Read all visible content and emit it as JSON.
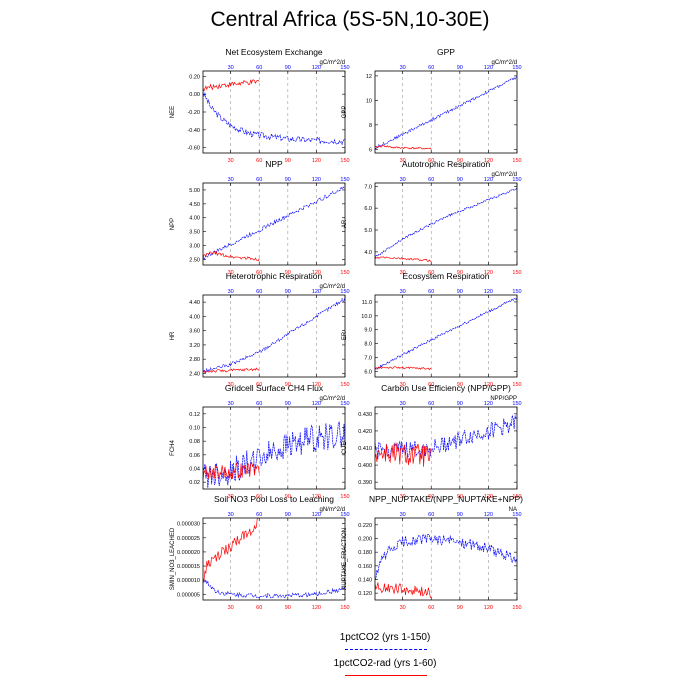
{
  "figure": {
    "title": "Central Africa (5S-5N,10-30E)",
    "colors": {
      "exp1": "#0000ff",
      "exp2": "#ff0000",
      "grid": "#999999"
    },
    "legend": [
      {
        "label": "1pctCO2 (yrs 1-150)",
        "color": "#0000ff",
        "style": "dashed"
      },
      {
        "label": "1pctCO2-rad (yrs 1-60)",
        "color": "#ff0000",
        "style": "solid"
      }
    ]
  },
  "chart_data": [
    {
      "type": "line",
      "title": "Net Ecosystem Exchange",
      "ylabel": "NEE",
      "units": "gC/m^2/d",
      "x": [
        1,
        150
      ],
      "top_ticks": [
        30,
        60,
        90,
        120,
        150
      ],
      "bottom_ticks": [
        30,
        60,
        90,
        120,
        150
      ],
      "yticks": [
        "0.20",
        "0.00",
        "-0.20",
        "-0.40",
        "-0.60"
      ],
      "ylim": [
        -0.66,
        0.26
      ],
      "series": [
        {
          "color": "#0000ff",
          "x": [
            1,
            10,
            20,
            30,
            40,
            50,
            60,
            75,
            90,
            105,
            120,
            135,
            150
          ],
          "y": [
            0.02,
            -0.16,
            -0.27,
            -0.35,
            -0.4,
            -0.44,
            -0.46,
            -0.48,
            -0.5,
            -0.51,
            -0.52,
            -0.52,
            -0.53
          ],
          "noise": 0.035
        },
        {
          "color": "#ff0000",
          "x": [
            1,
            10,
            20,
            30,
            40,
            50,
            60
          ],
          "y": [
            0.06,
            0.08,
            0.1,
            0.11,
            0.12,
            0.13,
            0.14
          ],
          "noise": 0.03
        }
      ]
    },
    {
      "type": "line",
      "title": "GPP",
      "ylabel": "GPP",
      "units": "gC/m^2/d",
      "x": [
        1,
        150
      ],
      "top_ticks": [
        30,
        60,
        90,
        120,
        150
      ],
      "bottom_ticks": [
        30,
        60,
        90,
        120,
        150
      ],
      "yticks": [
        "12",
        "10",
        "8",
        "6"
      ],
      "ylim": [
        5.7,
        12.4
      ],
      "series": [
        {
          "color": "#0000ff",
          "x": [
            1,
            150
          ],
          "y": [
            6.1,
            11.9
          ],
          "noise": 0.12
        },
        {
          "color": "#ff0000",
          "x": [
            1,
            10,
            20,
            60
          ],
          "y": [
            6.15,
            6.3,
            6.15,
            6.05
          ],
          "noise": 0.08
        }
      ]
    },
    {
      "type": "line",
      "title": "NPP",
      "ylabel": "NPP",
      "units": "",
      "x": [
        1,
        150
      ],
      "top_ticks": [
        30,
        60,
        90,
        120,
        150
      ],
      "bottom_ticks": [
        30,
        60,
        90,
        120,
        150
      ],
      "yticks": [
        "5.00",
        "4.50",
        "4.00",
        "3.50",
        "3.00",
        "2.50"
      ],
      "ylim": [
        2.3,
        5.25
      ],
      "series": [
        {
          "color": "#0000ff",
          "x": [
            1,
            150
          ],
          "y": [
            2.55,
            5.1
          ],
          "noise": 0.07
        },
        {
          "color": "#ff0000",
          "x": [
            1,
            10,
            30,
            60
          ],
          "y": [
            2.6,
            2.75,
            2.6,
            2.5
          ],
          "noise": 0.06
        }
      ]
    },
    {
      "type": "line",
      "title": "Autotrophic Respiration",
      "ylabel": "AR",
      "units": "gC/m^2/d",
      "x": [
        1,
        150
      ],
      "top_ticks": [
        30,
        60,
        90,
        120,
        150
      ],
      "bottom_ticks": [
        30,
        60,
        90,
        120,
        150
      ],
      "yticks": [
        "7.0",
        "6.0",
        "5.0",
        "4.0"
      ],
      "ylim": [
        3.4,
        7.15
      ],
      "series": [
        {
          "color": "#0000ff",
          "x": [
            1,
            30,
            75,
            150
          ],
          "y": [
            3.75,
            4.6,
            5.6,
            6.9
          ],
          "noise": 0.05
        },
        {
          "color": "#ff0000",
          "x": [
            1,
            10,
            60
          ],
          "y": [
            3.7,
            3.75,
            3.6
          ],
          "noise": 0.05
        }
      ]
    },
    {
      "type": "line",
      "title": "Heterotrophic Respiration",
      "ylabel": "HR",
      "units": "gC/m^2/d",
      "x": [
        1,
        150
      ],
      "top_ticks": [
        30,
        60,
        90,
        120,
        150
      ],
      "bottom_ticks": [
        30,
        60,
        90,
        120,
        150
      ],
      "yticks": [
        "4.40",
        "4.00",
        "3.60",
        "3.20",
        "2.80",
        "2.40"
      ],
      "ylim": [
        2.3,
        4.6
      ],
      "series": [
        {
          "color": "#0000ff",
          "x": [
            1,
            30,
            60,
            90,
            120,
            150
          ],
          "y": [
            2.45,
            2.65,
            3.0,
            3.5,
            4.0,
            4.5
          ],
          "noise": 0.05
        },
        {
          "color": "#ff0000",
          "x": [
            1,
            60
          ],
          "y": [
            2.45,
            2.52
          ],
          "noise": 0.04
        }
      ]
    },
    {
      "type": "line",
      "title": "Ecosystem Respiration",
      "ylabel": "ER",
      "units": "",
      "x": [
        1,
        150
      ],
      "top_ticks": [
        30,
        60,
        90,
        120,
        150
      ],
      "bottom_ticks": [
        30,
        60,
        90,
        120,
        150
      ],
      "yticks": [
        "11.0",
        "10.0",
        "9.0",
        "8.0",
        "7.0",
        "6.0"
      ],
      "ylim": [
        5.6,
        11.5
      ],
      "series": [
        {
          "color": "#0000ff",
          "x": [
            1,
            30,
            75,
            150
          ],
          "y": [
            6.15,
            7.2,
            8.8,
            11.3
          ],
          "noise": 0.1
        },
        {
          "color": "#ff0000",
          "x": [
            1,
            10,
            60
          ],
          "y": [
            6.2,
            6.3,
            6.2
          ],
          "noise": 0.08
        }
      ]
    },
    {
      "type": "line",
      "title": "Gridcell Surface CH4 Flux",
      "ylabel": "FCH4",
      "units": "gC/m^2/d",
      "x": [
        1,
        150
      ],
      "top_ticks": [
        30,
        60,
        90,
        120,
        150
      ],
      "bottom_ticks": [
        30,
        60,
        90,
        120,
        150
      ],
      "yticks": [
        "0.12",
        "0.10",
        "0.08",
        "0.06",
        "0.04",
        "0.02"
      ],
      "ylim": [
        0.01,
        0.13
      ],
      "series": [
        {
          "color": "#0000ff",
          "x": [
            1,
            30,
            60,
            90,
            120,
            150
          ],
          "y": [
            0.03,
            0.035,
            0.055,
            0.075,
            0.085,
            0.09
          ],
          "noise": 0.02
        },
        {
          "color": "#ff0000",
          "x": [
            1,
            30,
            60
          ],
          "y": [
            0.035,
            0.035,
            0.04
          ],
          "noise": 0.012
        }
      ]
    },
    {
      "type": "line",
      "title": "Carbon Use Efficiency (NPP/GPP)",
      "ylabel": "CUE",
      "units": "NPP/GPP",
      "x": [
        1,
        150
      ],
      "top_ticks": [
        30,
        60,
        90,
        120,
        150
      ],
      "bottom_ticks": [
        30,
        60,
        90,
        120,
        150
      ],
      "yticks": [
        "0.430",
        "0.420",
        "0.410",
        "0.400",
        "0.390"
      ],
      "ylim": [
        0.386,
        0.434
      ],
      "series": [
        {
          "color": "#0000ff",
          "x": [
            1,
            60,
            150
          ],
          "y": [
            0.408,
            0.41,
            0.425
          ],
          "noise": 0.005
        },
        {
          "color": "#ff0000",
          "x": [
            1,
            60
          ],
          "y": [
            0.407,
            0.405
          ],
          "noise": 0.007
        }
      ]
    },
    {
      "type": "line",
      "title": "Soil NO3 Pool Loss to Leaching",
      "ylabel": "SMIN_NO3_LEACHED",
      "units": "gN/m^2/d",
      "x": [
        1,
        150
      ],
      "top_ticks": [
        30,
        60,
        90,
        120,
        150
      ],
      "bottom_ticks": [
        30,
        60,
        90,
        120,
        150
      ],
      "yticks": [
        "0.000030",
        "0.000025",
        "0.000020",
        "0.000015",
        "0.000010",
        "0.000005"
      ],
      "ylim": [
        3e-06,
        3.2e-05
      ],
      "series": [
        {
          "color": "#0000ff",
          "x": [
            1,
            15,
            30,
            60,
            90,
            120,
            150
          ],
          "y": [
            1.05e-05,
            6e-06,
            5e-06,
            4.5e-06,
            4.5e-06,
            5e-06,
            7e-06
          ],
          "noise": 8e-07
        },
        {
          "color": "#ff0000",
          "x": [
            1,
            5,
            15,
            30,
            45,
            55,
            60
          ],
          "y": [
            9e-06,
            1.5e-05,
            1.8e-05,
            2.2e-05,
            2.6e-05,
            2.9e-05,
            3.2e-05
          ],
          "noise": 2e-06
        }
      ]
    },
    {
      "type": "line",
      "title": "NPP_NUPTAKE/(NPP_NUPTAKE+NPP)",
      "ylabel": "NUPTAKE_FRACTION",
      "units": "NA",
      "x": [
        1,
        150
      ],
      "top_ticks": [
        30,
        60,
        90,
        120,
        150
      ],
      "bottom_ticks": [
        30,
        60,
        90,
        120,
        150
      ],
      "yticks": [
        "0.220",
        "0.200",
        "0.180",
        "0.160",
        "0.140",
        "0.120"
      ],
      "ylim": [
        0.11,
        0.23
      ],
      "series": [
        {
          "color": "#0000ff",
          "x": [
            1,
            10,
            30,
            60,
            90,
            120,
            150
          ],
          "y": [
            0.14,
            0.175,
            0.195,
            0.2,
            0.195,
            0.185,
            0.17
          ],
          "noise": 0.008
        },
        {
          "color": "#ff0000",
          "x": [
            1,
            30,
            60
          ],
          "y": [
            0.13,
            0.125,
            0.12
          ],
          "noise": 0.008
        }
      ]
    }
  ]
}
